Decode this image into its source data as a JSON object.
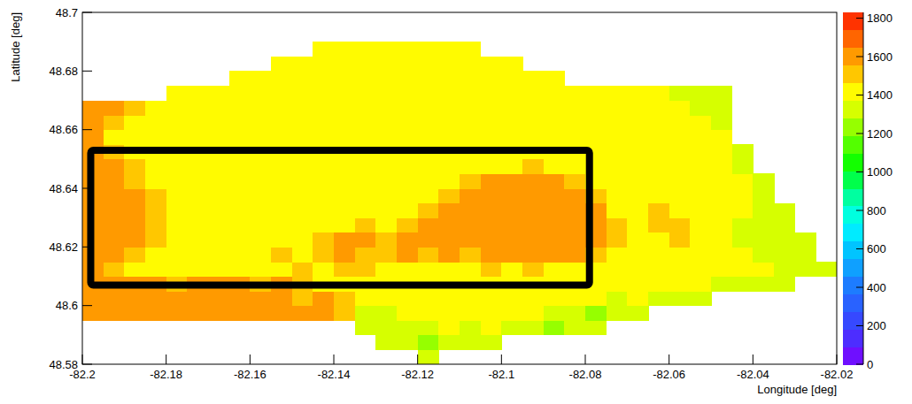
{
  "chart_data": {
    "type": "heatmap",
    "x_label": "Longitude [deg]",
    "y_label": "Latitude [deg]",
    "xlim": [
      -82.2,
      -82.02
    ],
    "ylim": [
      48.58,
      48.7
    ],
    "xticks": [
      -82.2,
      -82.18,
      -82.16,
      -82.14,
      -82.12,
      -82.1,
      -82.08,
      -82.06,
      -82.04,
      -82.02
    ],
    "yticks": [
      48.58,
      48.6,
      48.62,
      48.64,
      48.66,
      48.68,
      48.7
    ],
    "xbins": [
      -82.2,
      -82.195,
      -82.19,
      -82.185,
      -82.18,
      -82.175,
      -82.17,
      -82.165,
      -82.16,
      -82.155,
      -82.15,
      -82.145,
      -82.14,
      -82.135,
      -82.13,
      -82.125,
      -82.12,
      -82.115,
      -82.11,
      -82.105,
      -82.1,
      -82.095,
      -82.09,
      -82.085,
      -82.08,
      -82.075,
      -82.07,
      -82.065,
      -82.06,
      -82.055,
      -82.05,
      -82.045,
      -82.04,
      -82.035,
      -82.03,
      -82.025,
      -82.02
    ],
    "ybins": [
      48.58,
      48.585,
      48.59,
      48.595,
      48.6,
      48.605,
      48.61,
      48.615,
      48.62,
      48.625,
      48.63,
      48.635,
      48.64,
      48.645,
      48.65,
      48.655,
      48.66,
      48.665,
      48.67,
      48.675,
      48.68,
      48.685,
      48.69,
      48.695,
      48.7
    ],
    "z": [
      [
        null,
        null,
        null,
        null,
        null,
        null,
        null,
        null,
        null,
        null,
        null,
        null,
        null,
        null,
        null,
        null,
        1330,
        null,
        null,
        null,
        null,
        null,
        null,
        null,
        null,
        null,
        null,
        null,
        null,
        null,
        null,
        null,
        null,
        null,
        null,
        null
      ],
      [
        null,
        null,
        null,
        null,
        null,
        null,
        null,
        null,
        null,
        null,
        null,
        null,
        null,
        null,
        1330,
        1330,
        1270,
        1330,
        1330,
        1330,
        null,
        null,
        null,
        null,
        null,
        null,
        null,
        null,
        null,
        null,
        null,
        null,
        null,
        null,
        null,
        null
      ],
      [
        null,
        null,
        null,
        null,
        null,
        null,
        null,
        null,
        null,
        null,
        null,
        null,
        null,
        1330,
        1330,
        1330,
        1330,
        1450,
        1330,
        1450,
        1330,
        1330,
        1270,
        1330,
        1330,
        null,
        null,
        null,
        null,
        null,
        null,
        null,
        null,
        null,
        null,
        null
      ],
      [
        1560,
        1610,
        1560,
        1560,
        1560,
        1560,
        1560,
        1560,
        1560,
        1560,
        1560,
        1560,
        1510,
        1330,
        1330,
        1450,
        1450,
        1450,
        1450,
        1450,
        1450,
        1450,
        1330,
        1330,
        1270,
        1330,
        1330,
        null,
        null,
        null,
        null,
        null,
        null,
        null,
        null,
        null
      ],
      [
        1560,
        1560,
        1560,
        1560,
        1560,
        1560,
        1560,
        1560,
        1560,
        1560,
        1510,
        1560,
        1510,
        1450,
        1450,
        1450,
        1450,
        1450,
        1450,
        1450,
        1450,
        1450,
        1450,
        1450,
        1450,
        1330,
        1450,
        1330,
        1330,
        1330,
        null,
        null,
        null,
        null,
        null,
        null
      ],
      [
        1560,
        1560,
        1560,
        1560,
        1510,
        1560,
        1560,
        1560,
        1510,
        1560,
        1510,
        1450,
        1450,
        1450,
        1450,
        1450,
        1450,
        1450,
        1450,
        1450,
        1450,
        1450,
        1450,
        1450,
        1450,
        1450,
        1450,
        1450,
        1450,
        1450,
        1330,
        1330,
        1330,
        1330,
        null,
        null
      ],
      [
        1560,
        1510,
        1450,
        1450,
        1450,
        1450,
        1450,
        1450,
        1450,
        1450,
        1510,
        1450,
        1510,
        1510,
        1450,
        1450,
        1450,
        1450,
        1450,
        1510,
        1450,
        1510,
        1450,
        1450,
        1450,
        1450,
        1450,
        1450,
        1450,
        1450,
        1450,
        1450,
        1450,
        1330,
        1330,
        1330
      ],
      [
        1560,
        1560,
        1510,
        1450,
        1450,
        1450,
        1450,
        1450,
        1450,
        1510,
        1450,
        1510,
        1560,
        1510,
        1510,
        1560,
        1510,
        1560,
        1510,
        1560,
        1560,
        1560,
        1560,
        1560,
        1510,
        1450,
        1450,
        1450,
        1450,
        1450,
        1450,
        1450,
        1330,
        1330,
        1330,
        null
      ],
      [
        1560,
        1560,
        1560,
        1510,
        1450,
        1450,
        1450,
        1450,
        1450,
        1450,
        1450,
        1510,
        1560,
        1560,
        1510,
        1560,
        1560,
        1560,
        1560,
        1560,
        1560,
        1560,
        1560,
        1560,
        1560,
        1510,
        1450,
        1450,
        1510,
        1450,
        1450,
        1330,
        1330,
        1330,
        1330,
        null
      ],
      [
        1560,
        1560,
        1560,
        1510,
        1450,
        1450,
        1450,
        1450,
        1450,
        1450,
        1450,
        1450,
        1450,
        1510,
        1450,
        1510,
        1560,
        1560,
        1560,
        1560,
        1560,
        1560,
        1560,
        1560,
        1560,
        1510,
        1450,
        1510,
        1510,
        1450,
        1450,
        1330,
        1330,
        1330,
        null,
        null
      ],
      [
        1560,
        1560,
        1560,
        1510,
        1450,
        1450,
        1450,
        1450,
        1450,
        1450,
        1450,
        1450,
        1450,
        1450,
        1450,
        1450,
        1510,
        1560,
        1560,
        1560,
        1560,
        1560,
        1560,
        1560,
        1560,
        1450,
        1450,
        1510,
        1450,
        1450,
        1450,
        1450,
        1330,
        1330,
        null,
        null
      ],
      [
        1560,
        1560,
        1560,
        1510,
        1450,
        1450,
        1450,
        1450,
        1450,
        1450,
        1450,
        1450,
        1450,
        1450,
        1450,
        1450,
        1450,
        1510,
        1560,
        1560,
        1560,
        1560,
        1560,
        1560,
        1510,
        1450,
        1450,
        1450,
        1450,
        1450,
        1450,
        1450,
        1330,
        null,
        null,
        null
      ],
      [
        1560,
        1560,
        1510,
        1450,
        1450,
        1450,
        1450,
        1450,
        1450,
        1450,
        1450,
        1450,
        1450,
        1450,
        1450,
        1450,
        1450,
        1450,
        1510,
        1560,
        1560,
        1560,
        1560,
        1510,
        1450,
        1450,
        1450,
        1450,
        1450,
        1450,
        1450,
        1450,
        1330,
        null,
        null,
        null
      ],
      [
        1560,
        1560,
        1510,
        1450,
        1450,
        1450,
        1450,
        1450,
        1450,
        1450,
        1450,
        1450,
        1450,
        1450,
        1450,
        1450,
        1450,
        1450,
        1450,
        1450,
        1450,
        1510,
        1450,
        1450,
        1450,
        1450,
        1450,
        1450,
        1450,
        1450,
        1450,
        1330,
        null,
        null,
        null,
        null
      ],
      [
        1560,
        1510,
        1450,
        1450,
        1450,
        1450,
        1450,
        1450,
        1450,
        1450,
        1450,
        1450,
        1450,
        1450,
        1450,
        1450,
        1450,
        1450,
        1450,
        1450,
        1450,
        1450,
        1450,
        1450,
        1450,
        1450,
        1450,
        1450,
        1450,
        1450,
        1450,
        1330,
        null,
        null,
        null,
        null
      ],
      [
        1560,
        1450,
        1450,
        1450,
        1450,
        1450,
        1450,
        1450,
        1450,
        1450,
        1450,
        1450,
        1450,
        1450,
        1450,
        1450,
        1450,
        1450,
        1450,
        1450,
        1450,
        1450,
        1450,
        1450,
        1450,
        1450,
        1450,
        1450,
        1450,
        1450,
        1450,
        null,
        null,
        null,
        null,
        null
      ],
      [
        1560,
        1510,
        1450,
        1450,
        1450,
        1450,
        1450,
        1450,
        1450,
        1450,
        1450,
        1450,
        1450,
        1450,
        1450,
        1450,
        1450,
        1450,
        1450,
        1450,
        1450,
        1450,
        1450,
        1450,
        1450,
        1450,
        1450,
        1450,
        1450,
        1450,
        1330,
        null,
        null,
        null,
        null,
        null
      ],
      [
        1560,
        1560,
        1510,
        1450,
        1450,
        1450,
        1450,
        1450,
        1450,
        1450,
        1450,
        1450,
        1450,
        1450,
        1450,
        1450,
        1450,
        1450,
        1450,
        1450,
        1450,
        1450,
        1450,
        1450,
        1450,
        1450,
        1450,
        1450,
        1450,
        1330,
        1330,
        null,
        null,
        null,
        null,
        null
      ],
      [
        null,
        null,
        null,
        null,
        1450,
        1450,
        1450,
        1450,
        1450,
        1450,
        1450,
        1450,
        1450,
        1450,
        1450,
        1450,
        1450,
        1450,
        1450,
        1450,
        1450,
        1450,
        1450,
        1450,
        1450,
        1450,
        1450,
        1450,
        1330,
        1330,
        1330,
        null,
        null,
        null,
        null,
        null
      ],
      [
        null,
        null,
        null,
        null,
        null,
        null,
        null,
        1450,
        1450,
        1450,
        1450,
        1450,
        1450,
        1450,
        1450,
        1450,
        1450,
        1450,
        1450,
        1450,
        1450,
        1450,
        1450,
        null,
        null,
        null,
        null,
        null,
        null,
        null,
        null,
        null,
        null,
        null,
        null,
        null
      ],
      [
        null,
        null,
        null,
        null,
        null,
        null,
        null,
        null,
        null,
        1450,
        1450,
        1450,
        1450,
        1450,
        1450,
        1450,
        1450,
        1450,
        1450,
        1450,
        1450,
        null,
        null,
        null,
        null,
        null,
        null,
        null,
        null,
        null,
        null,
        null,
        null,
        null,
        null,
        null
      ],
      [
        null,
        null,
        null,
        null,
        null,
        null,
        null,
        null,
        null,
        null,
        null,
        1450,
        1450,
        1450,
        1450,
        1450,
        1450,
        1450,
        1450,
        null,
        null,
        null,
        null,
        null,
        null,
        null,
        null,
        null,
        null,
        null,
        null,
        null,
        null,
        null,
        null,
        null
      ],
      [
        null,
        null,
        null,
        null,
        null,
        null,
        null,
        null,
        null,
        null,
        null,
        null,
        null,
        null,
        null,
        null,
        null,
        null,
        null,
        null,
        null,
        null,
        null,
        null,
        null,
        null,
        null,
        null,
        null,
        null,
        null,
        null,
        null,
        null,
        null,
        null
      ],
      [
        null,
        null,
        null,
        null,
        null,
        null,
        null,
        null,
        null,
        null,
        null,
        null,
        null,
        null,
        null,
        null,
        null,
        null,
        null,
        null,
        null,
        null,
        null,
        null,
        null,
        null,
        null,
        null,
        null,
        null,
        null,
        null,
        null,
        null,
        null,
        null
      ]
    ],
    "zlim": [
      0,
      1830
    ],
    "zticks": [
      0,
      200,
      400,
      600,
      800,
      1000,
      1200,
      1400,
      1600,
      1800
    ],
    "region": {
      "x": [
        -82.198,
        -82.079
      ],
      "y": [
        48.607,
        48.653
      ]
    }
  }
}
